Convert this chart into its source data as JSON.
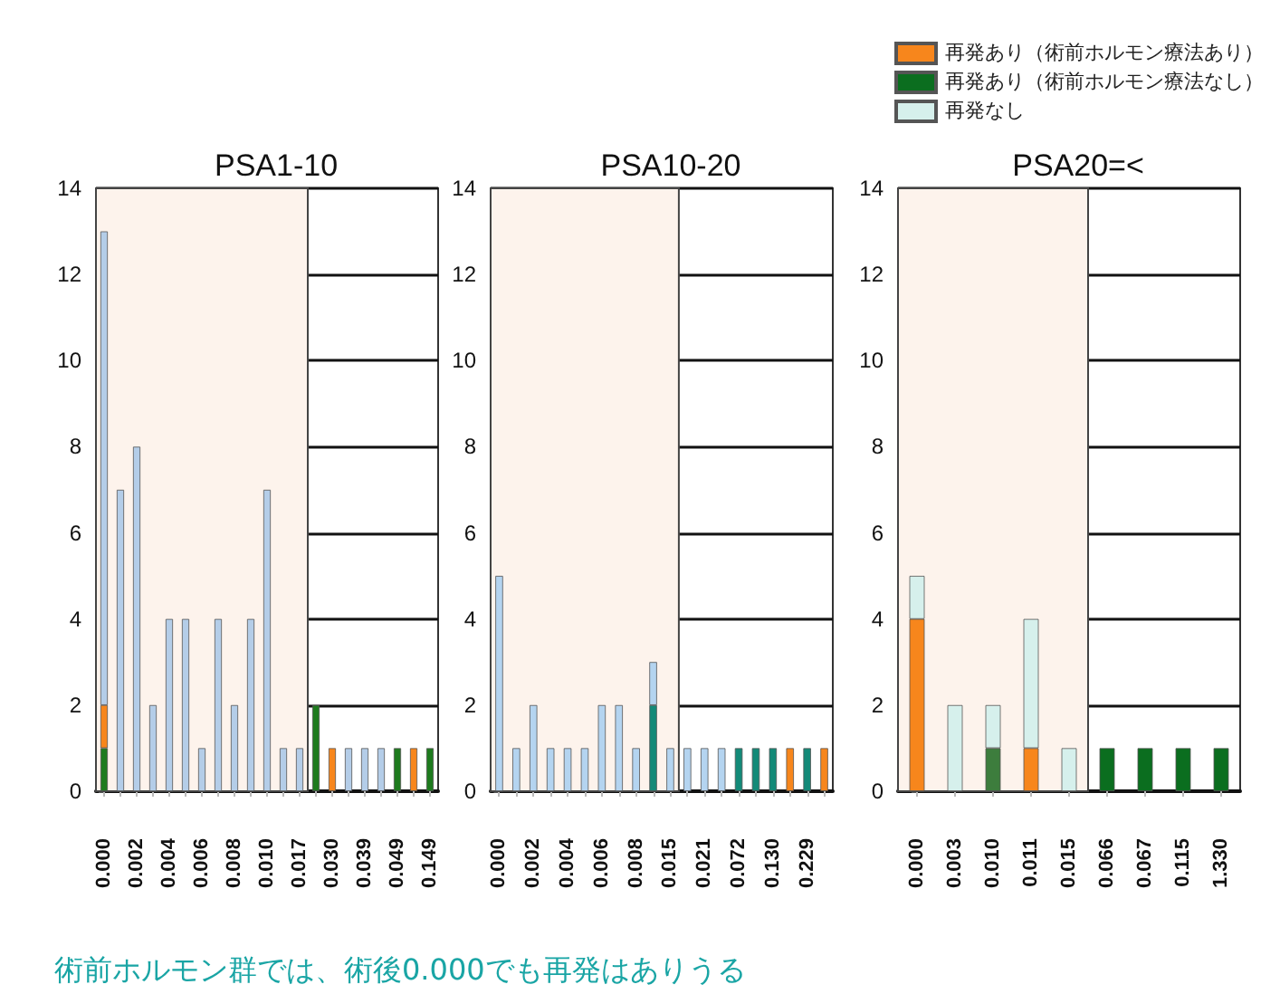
{
  "chart_data": [
    {
      "type": "bar",
      "title": "PSA1-10",
      "stacked": true,
      "categories": [
        "0.000",
        null,
        "0.002",
        null,
        "0.004",
        null,
        "0.006",
        null,
        "0.008",
        null,
        "0.010",
        null,
        "0.017",
        null,
        "0.030",
        null,
        "0.039",
        null,
        "0.049",
        null,
        "0.149"
      ],
      "series": [
        {
          "color": "#1e7b1e",
          "values": [
            1,
            null,
            null,
            null,
            null,
            null,
            null,
            null,
            null,
            null,
            null,
            null,
            null,
            2,
            null,
            null,
            null,
            null,
            1,
            null,
            1
          ]
        },
        {
          "color": "#f7861c",
          "values": [
            1,
            null,
            null,
            null,
            null,
            null,
            null,
            null,
            null,
            null,
            null,
            null,
            null,
            null,
            1,
            null,
            null,
            null,
            null,
            1,
            null
          ]
        },
        {
          "color": "#b4cde8",
          "values": [
            11,
            7,
            8,
            2,
            4,
            4,
            1,
            4,
            2,
            4,
            7,
            1,
            1,
            null,
            null,
            1,
            1,
            1,
            null,
            null,
            null
          ]
        }
      ],
      "ylim": [
        0,
        14
      ],
      "yticks": [
        0,
        2,
        4,
        6,
        8,
        10,
        12,
        14
      ],
      "grid": "y",
      "bands": [
        {
          "axis": "x",
          "from": "0.000",
          "to": "0.017",
          "color": "#fdf3ec"
        }
      ],
      "annotations": [
        "術前ホルモン群では、術後0.000でも再発はありうる"
      ]
    },
    {
      "type": "bar",
      "title": "PSA10-20",
      "stacked": true,
      "categories": [
        "0.000",
        null,
        "0.002",
        null,
        "0.004",
        null,
        "0.006",
        null,
        "0.008",
        null,
        "0.015",
        null,
        "0.021",
        null,
        "0.072",
        null,
        "0.130",
        null,
        "0.229",
        null
      ],
      "series": [
        {
          "color": "#f7861c",
          "values": [
            null,
            null,
            null,
            null,
            null,
            null,
            null,
            null,
            null,
            null,
            null,
            null,
            null,
            null,
            null,
            null,
            null,
            1,
            null,
            1
          ]
        },
        {
          "color": "#138a78",
          "values": [
            null,
            null,
            null,
            null,
            null,
            null,
            null,
            null,
            null,
            2,
            null,
            null,
            null,
            null,
            1,
            1,
            1,
            null,
            1,
            null
          ]
        },
        {
          "color": "#b4d4f0",
          "values": [
            5,
            1,
            2,
            1,
            1,
            1,
            2,
            2,
            1,
            1,
            1,
            1,
            1,
            1,
            null,
            null,
            null,
            null,
            null,
            null
          ]
        }
      ],
      "ylim": [
        0,
        14
      ],
      "yticks": [
        0,
        2,
        4,
        6,
        8,
        10,
        12,
        14
      ],
      "grid": "y",
      "bands": [
        {
          "axis": "x",
          "from": "0.000",
          "to": "0.015",
          "color": "#fdf3ec"
        }
      ]
    },
    {
      "type": "bar",
      "title": "PSA20=<",
      "stacked": true,
      "legend": "top right",
      "categories": [
        "0.000",
        "0.003",
        "0.010",
        "0.011",
        "0.015",
        "0.066",
        "0.067",
        "0.115",
        "1.330"
      ],
      "series": [
        {
          "name": "再発あり（術前ホルモン療法あり）",
          "color": "#f7861c",
          "values": [
            4,
            null,
            null,
            1,
            null,
            null,
            null,
            null,
            null
          ]
        },
        {
          "name": "再発あり（術前ホルモン療法なし）",
          "color": "#0b6e1f",
          "colors": [
            "#0b6e1f",
            "#0b6e1f",
            "#3d7d3d",
            "#0b6e1f",
            "#0b6e1f",
            "#0b6e1f",
            "#0b6e1f",
            "#0b6e1f",
            "#0b6e1f"
          ],
          "values": [
            null,
            null,
            1,
            null,
            null,
            1,
            1,
            1,
            1
          ]
        },
        {
          "name": "再発なし",
          "color": "#d6f0ec",
          "values": [
            1,
            2,
            1,
            3,
            1,
            null,
            null,
            null,
            null
          ]
        }
      ],
      "ylim": [
        0,
        14
      ],
      "yticks": [
        0,
        2,
        4,
        6,
        8,
        10,
        12,
        14
      ],
      "grid": "y",
      "bands": [
        {
          "axis": "x",
          "from": "0.000",
          "to": "0.015",
          "color": "#fdf3ec"
        }
      ]
    }
  ]
}
